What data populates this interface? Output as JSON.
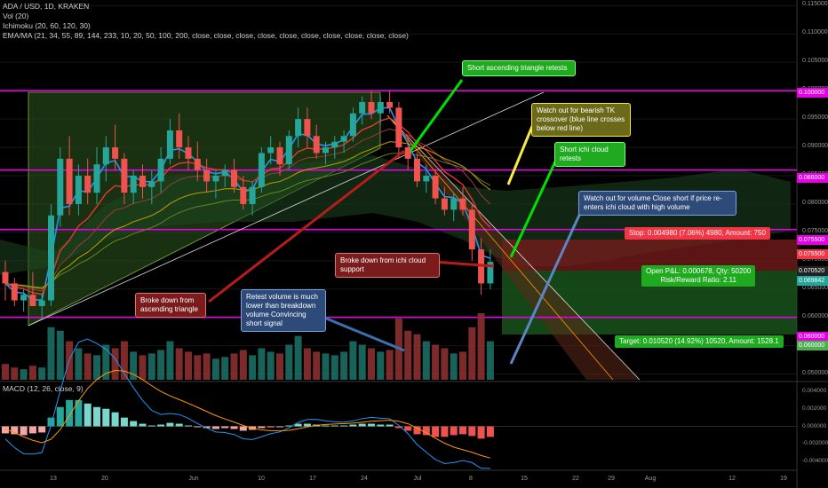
{
  "header": {
    "symbol_line": "ADA / USD, 1D, KRAKEN",
    "vol_line": "Vol (20)",
    "ichimoku_line": "Ichimoku (20, 60, 120, 30)",
    "ema_line": "EMA/MA (21, 34, 55, 89, 144, 233, 10, 20, 50, 100, 200, close, close, close, close, close, close, close, close, close, close)",
    "macd_line": "MACD (12, 26, close, 9)"
  },
  "notes": {
    "asc_retest": "Short ascending triangle retests",
    "tk_cross": "Watch out for bearish TK crossover (blue line crosses below red line)",
    "ichi_retest": "Short ichi cloud retests",
    "volume": "Watch out for volume Close short if price re-enters ichi cloud with high volume",
    "broke_ichi": "Broke down from ichi cloud support",
    "broke_triangle": "Broke down from ascending triangle",
    "retest_volume": "Retest volume is much lower than breakdown volume Convincing short signal"
  },
  "position": {
    "stop": "Stop: 0.004980 (7.06%) 4980, Amount: 750",
    "pnl": "Open P&L: 0.000678, Qty: 50200",
    "rr": "Risk/Reward Ratio: 2.11",
    "target": "Target: 0.010520 (14.92%) 10520, Amount: 1528.1"
  },
  "price_axis": [
    "0.115000",
    "0.110000",
    "0.105000",
    "0.100000",
    "0.095000",
    "0.090000",
    "0.085000",
    "0.080000",
    "0.075000",
    "0.070000",
    "0.065000",
    "0.060000",
    "0.055000",
    "0.050000"
  ],
  "price_tags": [
    {
      "label": "0.100000",
      "bg": "#e600e6",
      "fg": "#ffffff"
    },
    {
      "label": "0.086000",
      "bg": "#e600e6",
      "fg": "#ffffff"
    },
    {
      "label": "0.075500",
      "bg": "#e600e6",
      "fg": "#ffffff"
    },
    {
      "label": "0.075500",
      "bg": "#f23645",
      "fg": "#ffffff"
    },
    {
      "label": "0.070520",
      "bg": "#222222",
      "fg": "#ffffff"
    },
    {
      "label": "0.069842",
      "bg": "#26a69a",
      "fg": "#ffffff"
    },
    {
      "label": "0.060000",
      "bg": "#e600e6",
      "fg": "#ffffff"
    },
    {
      "label": "0.060000",
      "bg": "#4caf50",
      "fg": "#ffffff"
    }
  ],
  "macd_axis": [
    "0.004000",
    "0.002000",
    "0.000000",
    "-0.002000",
    "-0.004000"
  ],
  "date_axis": [
    "13",
    "20",
    "Jun",
    "10",
    "17",
    "24",
    "Jul",
    "8",
    "15",
    "22",
    "29",
    "Aug",
    "12",
    "19"
  ],
  "colors": {
    "up": "#26a69a",
    "down": "#ef5350",
    "magenta_line": "#e600e6",
    "tenkan": "#2196f3",
    "kijun": "#e53935"
  },
  "chart_data": {
    "type": "candlestick",
    "title": "ADA / USD, 1D, KRAKEN",
    "ylim": [
      0.049,
      0.116
    ],
    "horizontal_levels": [
      0.1,
      0.086,
      0.0755,
      0.06
    ],
    "candles": [
      [
        0.068,
        0.07,
        0.063,
        0.066
      ],
      [
        0.066,
        0.067,
        0.062,
        0.063
      ],
      [
        0.063,
        0.065,
        0.061,
        0.064
      ],
      [
        0.064,
        0.068,
        0.062,
        0.062
      ],
      [
        0.062,
        0.064,
        0.06,
        0.063
      ],
      [
        0.063,
        0.08,
        0.062,
        0.078
      ],
      [
        0.078,
        0.09,
        0.076,
        0.088
      ],
      [
        0.088,
        0.092,
        0.078,
        0.08
      ],
      [
        0.08,
        0.087,
        0.078,
        0.085
      ],
      [
        0.085,
        0.088,
        0.08,
        0.082
      ],
      [
        0.082,
        0.09,
        0.08,
        0.087
      ],
      [
        0.087,
        0.092,
        0.084,
        0.09
      ],
      [
        0.09,
        0.094,
        0.086,
        0.088
      ],
      [
        0.088,
        0.089,
        0.08,
        0.082
      ],
      [
        0.082,
        0.086,
        0.08,
        0.085
      ],
      [
        0.085,
        0.087,
        0.081,
        0.083
      ],
      [
        0.083,
        0.086,
        0.08,
        0.084
      ],
      [
        0.084,
        0.09,
        0.082,
        0.088
      ],
      [
        0.088,
        0.095,
        0.087,
        0.093
      ],
      [
        0.093,
        0.096,
        0.088,
        0.09
      ],
      [
        0.09,
        0.092,
        0.086,
        0.088
      ],
      [
        0.088,
        0.091,
        0.084,
        0.086
      ],
      [
        0.086,
        0.088,
        0.082,
        0.084
      ],
      [
        0.084,
        0.086,
        0.081,
        0.085
      ],
      [
        0.085,
        0.087,
        0.083,
        0.086
      ],
      [
        0.086,
        0.088,
        0.082,
        0.083
      ],
      [
        0.083,
        0.085,
        0.079,
        0.08
      ],
      [
        0.08,
        0.084,
        0.078,
        0.083
      ],
      [
        0.083,
        0.09,
        0.082,
        0.089
      ],
      [
        0.089,
        0.092,
        0.087,
        0.09
      ],
      [
        0.09,
        0.091,
        0.085,
        0.087
      ],
      [
        0.087,
        0.093,
        0.086,
        0.092
      ],
      [
        0.092,
        0.097,
        0.09,
        0.095
      ],
      [
        0.095,
        0.097,
        0.09,
        0.092
      ],
      [
        0.092,
        0.094,
        0.088,
        0.089
      ],
      [
        0.089,
        0.091,
        0.087,
        0.09
      ],
      [
        0.09,
        0.092,
        0.088,
        0.091
      ],
      [
        0.091,
        0.093,
        0.089,
        0.092
      ],
      [
        0.092,
        0.097,
        0.091,
        0.096
      ],
      [
        0.096,
        0.099,
        0.094,
        0.098
      ],
      [
        0.098,
        0.1,
        0.095,
        0.096
      ],
      [
        0.096,
        0.099,
        0.094,
        0.098
      ],
      [
        0.098,
        0.1,
        0.096,
        0.097
      ],
      [
        0.097,
        0.098,
        0.088,
        0.09
      ],
      [
        0.09,
        0.092,
        0.086,
        0.088
      ],
      [
        0.088,
        0.089,
        0.083,
        0.084
      ],
      [
        0.084,
        0.087,
        0.082,
        0.085
      ],
      [
        0.085,
        0.086,
        0.08,
        0.081
      ],
      [
        0.081,
        0.083,
        0.078,
        0.079
      ],
      [
        0.079,
        0.082,
        0.077,
        0.081
      ],
      [
        0.081,
        0.083,
        0.078,
        0.079
      ],
      [
        0.079,
        0.08,
        0.07,
        0.072
      ],
      [
        0.072,
        0.074,
        0.064,
        0.066
      ],
      [
        0.066,
        0.072,
        0.065,
        0.0698
      ]
    ],
    "volume": [
      9,
      7,
      6,
      8,
      7,
      30,
      28,
      22,
      18,
      15,
      14,
      20,
      18,
      22,
      16,
      14,
      15,
      17,
      22,
      18,
      16,
      14,
      15,
      12,
      13,
      15,
      17,
      14,
      18,
      16,
      15,
      20,
      25,
      18,
      16,
      15,
      14,
      16,
      22,
      20,
      18,
      16,
      17,
      35,
      28,
      26,
      22,
      20,
      18,
      15,
      16,
      30,
      38,
      22
    ],
    "macd_hist": [
      -0.0008,
      -0.0009,
      -0.001,
      -0.0008,
      -0.0007,
      0.001,
      0.0022,
      0.003,
      0.003,
      0.0026,
      0.0022,
      0.002,
      0.0016,
      0.001,
      0.0006,
      0.0003,
      0.0001,
      0.0002,
      0.0004,
      0.0003,
      0.0001,
      -0.0001,
      -0.0002,
      -0.0003,
      -0.0002,
      -0.0003,
      -0.0005,
      -0.0004,
      -0.0002,
      -0.0001,
      -0.0001,
      0.0001,
      0.0003,
      0.0003,
      0.0002,
      0.0001,
      0.0001,
      0.0001,
      0.0002,
      0.0003,
      0.0003,
      0.0002,
      0.0002,
      -0.0002,
      -0.0005,
      -0.0009,
      -0.001,
      -0.0012,
      -0.0012,
      -0.001,
      -0.0009,
      -0.0011,
      -0.0014,
      -0.0012
    ]
  }
}
